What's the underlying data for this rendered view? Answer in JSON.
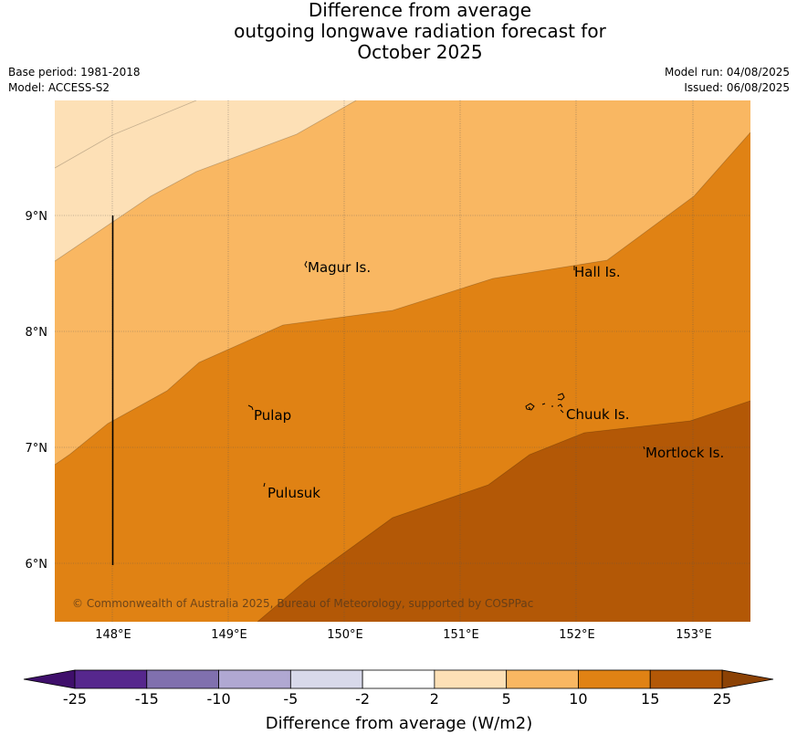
{
  "title_lines": [
    "Difference from average",
    "outgoing longwave radiation forecast for",
    "October 2025"
  ],
  "meta_left": {
    "base_period": "Base period: 1981-2018",
    "model": "Model: ACCESS-S2"
  },
  "meta_right": {
    "model_run": "Model run: 04/08/2025",
    "issued": "Issued: 06/08/2025"
  },
  "map": {
    "lon_range": [
      147.5,
      153.5
    ],
    "lat_range": [
      5.5,
      10.0
    ],
    "lon_ticks": [
      "148°E",
      "149°E",
      "150°E",
      "151°E",
      "152°E",
      "153°E"
    ],
    "lat_ticks": [
      "9°N",
      "8°N",
      "7°N",
      "6°N"
    ],
    "gridlines": true,
    "places": [
      "Magur Is.",
      "Hall Is.",
      "Pulap",
      "Chuuk Is.",
      "Mortlock Is.",
      "Pulusuk"
    ],
    "copyright": "© Commonwealth of Australia 2025, Bureau of Meteorology, supported by COSPPac"
  },
  "colorbar": {
    "labels": [
      "-25",
      "-15",
      "-10",
      "-5",
      "-2",
      "2",
      "5",
      "10",
      "15",
      "25"
    ],
    "colors": [
      "#3f0f6b",
      "#56278d",
      "#8070ae",
      "#b0a8d2",
      "#d8d9ea",
      "#ffffff",
      "#fde0b6",
      "#f9b762",
      "#e08214",
      "#b35806",
      "#8c4205"
    ],
    "title": "Difference from average (W/m2)"
  }
}
